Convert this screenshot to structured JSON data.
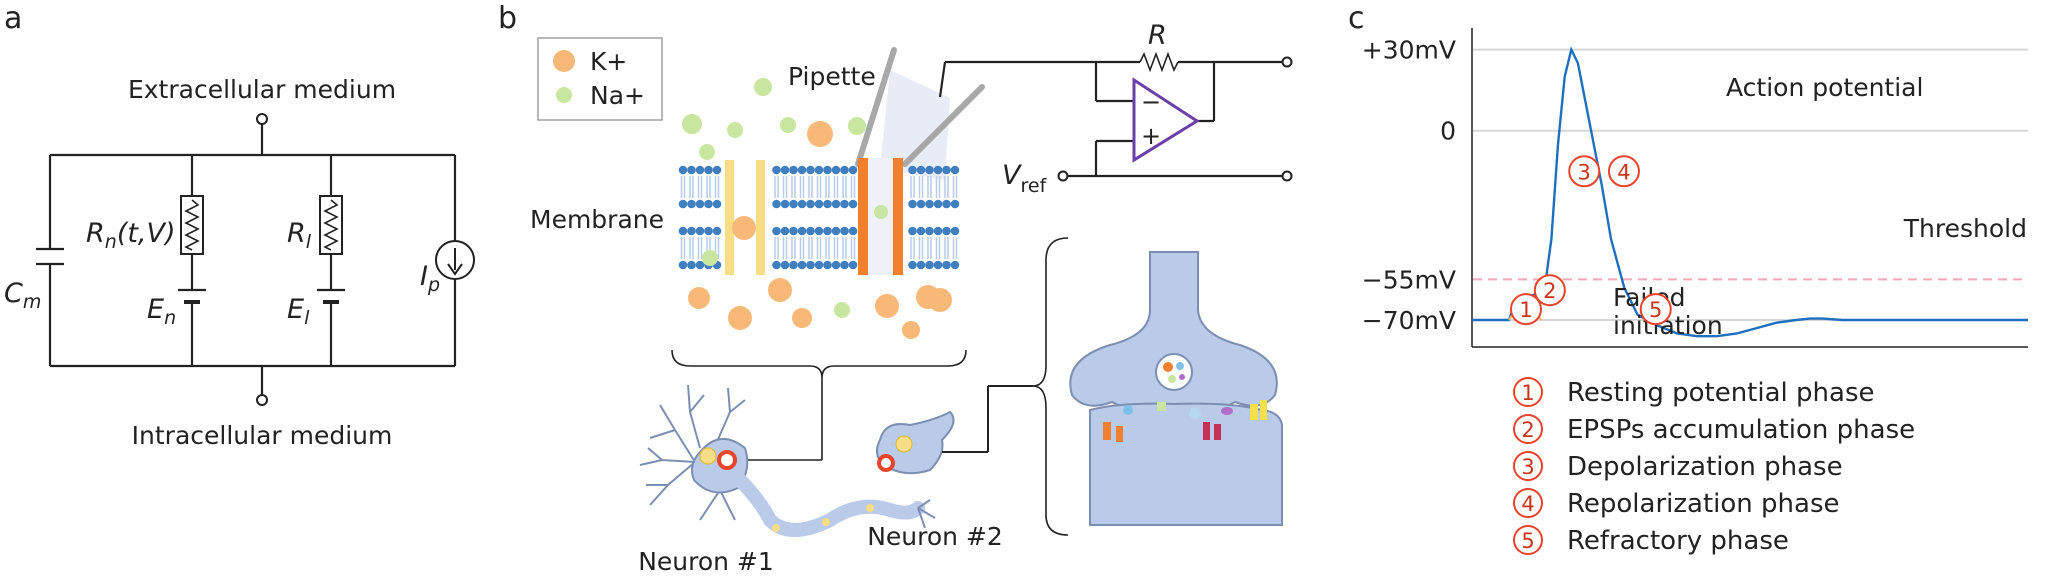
{
  "panels": {
    "a": "a",
    "b": "b",
    "c": "c"
  },
  "circuit": {
    "extracellular": "Extracellular medium",
    "intracellular": "Intracellular medium",
    "Cm": {
      "main": "C",
      "sub": "m"
    },
    "Rn": {
      "main": "R",
      "sub": "n",
      "rest": "(t,V)"
    },
    "Rl": {
      "main": "R",
      "sub": "l"
    },
    "En": {
      "main": "E",
      "sub": "n"
    },
    "El": {
      "main": "E",
      "sub": "l"
    },
    "Ip": {
      "main": "I",
      "sub": "p"
    }
  },
  "ion_legend": {
    "k": "K+",
    "na": "Na+"
  },
  "patch": {
    "pipette": "Pipette",
    "membrane": "Membrane",
    "R": "R",
    "Vref": {
      "main": "V",
      "sub": "ref"
    },
    "opamp_minus": "−",
    "opamp_plus": "+",
    "neuron1": "Neuron #1",
    "neuron2": "Neuron #2"
  },
  "colors": {
    "k_ion": "#f8b878",
    "na_ion": "#c8e6a0",
    "membrane_head": "#3f7fbf",
    "channel_yellow": "#f7de86",
    "channel_orange": "#f07f2e",
    "opamp": "#6a3fa8",
    "neuron_fill": "#b9cbe8",
    "neuron_stroke": "#7c8fb2",
    "trace": "#1f6fbf",
    "failed_trace": "#f4b860",
    "threshold": "#f4a7b9",
    "marker": "#e8432b"
  },
  "chart_data": {
    "type": "line",
    "title": "",
    "xlabel": "",
    "ylabel": "",
    "ylim": [
      -80,
      38
    ],
    "y_ticks": [
      {
        "value": 30,
        "label": "+30mV"
      },
      {
        "value": 0,
        "label": "0"
      },
      {
        "value": -55,
        "label": "−55mV"
      },
      {
        "value": -70,
        "label": "−70mV"
      }
    ],
    "grid": true,
    "series": [
      {
        "name": "Action potential",
        "x": [
          0,
          5,
          15,
          28,
          30,
          33,
          36,
          40,
          45,
          50,
          55,
          60,
          65,
          70,
          75,
          80,
          90,
          98,
          105,
          115,
          125,
          140,
          155,
          170,
          185,
          200,
          215,
          230,
          245,
          255,
          265,
          280,
          300,
          320,
          335,
          350,
          370,
          390,
          420
        ],
        "y": [
          -70,
          -70,
          -70,
          -70,
          -67,
          -64,
          -63,
          -62,
          -61,
          -60,
          -58,
          -40,
          -5,
          20,
          30,
          25,
          0,
          -20,
          -40,
          -58,
          -68,
          -72,
          -75,
          -76,
          -76,
          -75,
          -73,
          -71,
          -70,
          -69.5,
          -69.5,
          -70,
          -70,
          -70,
          -70,
          -70,
          -70,
          -70,
          -70
        ]
      },
      {
        "name": "Failed initiation",
        "x": [
          28,
          33,
          37,
          40,
          44,
          48,
          52
        ],
        "y": [
          -70,
          -66,
          -64,
          -63.5,
          -64,
          -66,
          -70
        ]
      }
    ],
    "threshold": {
      "value": -55,
      "label": "Threshold"
    },
    "annotations": {
      "action_potential": "Action potential",
      "failed_line1": "Failed",
      "failed_line2": "initiation"
    },
    "markers": [
      {
        "num": "1",
        "x": 0,
        "y": -66
      },
      {
        "num": "2",
        "x": 18,
        "y": -59
      },
      {
        "num": "3",
        "x": 44,
        "y": -15
      },
      {
        "num": "4",
        "x": 74,
        "y": -15
      },
      {
        "num": "5",
        "x": 98,
        "y": -66
      }
    ],
    "phases": [
      {
        "num": "1",
        "label": "Resting potential phase"
      },
      {
        "num": "2",
        "label": "EPSPs accumulation phase"
      },
      {
        "num": "3",
        "label": "Depolarization phase"
      },
      {
        "num": "4",
        "label": "Repolarization phase"
      },
      {
        "num": "5",
        "label": "Refractory phase"
      }
    ]
  }
}
